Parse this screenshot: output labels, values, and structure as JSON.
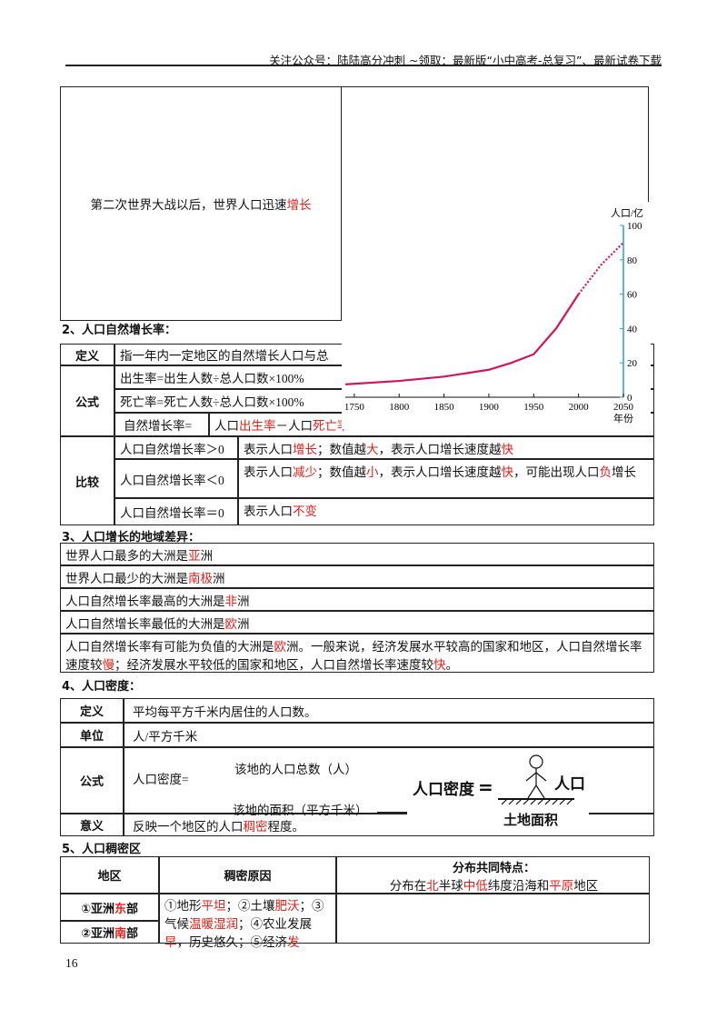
{
  "header": "关注公众号：陆陆高分冲刺  ~领取：最新版“小中高考-总复习”、最新试卷下载",
  "intro_row": [
    "第二次世界大战以后，世界人口迅速",
    "增长"
  ],
  "section2": {
    "title": "2、人口自然增长率：",
    "definition": {
      "label": "定义",
      "text": [
        "指一年内一定地区的自然增长人口与总"
      ]
    },
    "formula": {
      "label": "公式",
      "lines": [
        [
          "出生率=出生人数÷总人口数×100%"
        ],
        [
          "死亡率=死亡人数÷总人口数×100%"
        ]
      ],
      "growth_label": "自然增长率=",
      "growth_text": [
        "人口",
        "出生率",
        "－人口",
        "死亡率"
      ]
    },
    "compare": {
      "label": "比较",
      "rows": [
        {
          "condition": "人口自然增长率＞0",
          "meaning": [
            "表示人口",
            "增长",
            "；数值越",
            "大",
            "，表示人口增长速度越",
            "快"
          ]
        },
        {
          "condition": "人口自然增长率＜0",
          "meaning": [
            "表示人口",
            "减少",
            "；数值越",
            "小",
            "，表示人口增长速度越",
            "快",
            "，可能出现人口",
            "负",
            "增长"
          ]
        },
        {
          "condition": "人口自然增长率＝0",
          "meaning": [
            "表示人口",
            "不变"
          ]
        }
      ]
    }
  },
  "section3": {
    "title": "3、人口增长的地域差异：",
    "rows": [
      [
        "世界人口最多的大洲是",
        "亚",
        "洲"
      ],
      [
        "世界人口最少的大洲是",
        "南极",
        "洲"
      ],
      [
        "人口自然增长率最高的大洲是",
        "非",
        "洲"
      ],
      [
        "人口自然增长率最低的大洲是",
        "欧",
        "洲"
      ],
      [
        "人口自然增长率有可能为负值的大洲是",
        "欧",
        "洲。一般来说，经济发展水平较高的国家和地区，人口自然增长率速度较",
        "慢",
        "；经济发展水平较低的国家和地区，人口自然增长率速度较",
        "快",
        "。"
      ]
    ]
  },
  "section4": {
    "title": "4、人口密度：",
    "definition": {
      "label": "定义",
      "text": [
        "平均每平方千米内居住的人口数。"
      ]
    },
    "unit": {
      "label": "单位",
      "text": [
        "人/平方千米"
      ]
    },
    "formula": {
      "label": "公式",
      "lhs": "人口密度=",
      "numerator": "该地的人口总数（人）",
      "denominator": "该地的面积（平方千米）"
    },
    "figure": {
      "left": "人口密度",
      "equals": "=",
      "top": "人口",
      "bottom": "土地面积"
    },
    "meaning": {
      "label": "意义",
      "text": [
        "反映一个地区的人口",
        "稠密",
        "程度。"
      ]
    }
  },
  "section5": {
    "title": "5、人口稠密区",
    "headers": {
      "region": "地区",
      "reason": "稠密原因",
      "common_label": "分布共同特点：",
      "common": [
        "分布在",
        "北",
        "半球",
        "中低",
        "纬度沿海和",
        "平原",
        "地区"
      ]
    },
    "regions": [
      [
        "①亚洲",
        "东",
        "部"
      ],
      [
        "②亚洲",
        "南",
        "部"
      ]
    ],
    "reason": [
      "①地形",
      "平坦",
      "；②土壤",
      "肥沃",
      "；③气候",
      "温暖湿润",
      "；④农业发展",
      "早",
      "，历史悠久；⑤经济",
      "发"
    ]
  },
  "page_number": "16",
  "chart_data": {
    "type": "line",
    "y_label": "人口/亿",
    "x_label": "年份",
    "xlim": [
      1740,
      2050
    ],
    "ylim": [
      0,
      100
    ],
    "xticks": [
      1750,
      1800,
      1850,
      1900,
      1950,
      2000,
      2050
    ],
    "yticks": [
      0,
      20,
      40,
      60,
      80,
      100
    ],
    "series": [
      {
        "style": "solid",
        "color": "#d4145a",
        "x": [
          1740,
          1800,
          1850,
          1900,
          1925,
          1950,
          1975,
          2000
        ],
        "values": [
          7.5,
          9.5,
          12,
          16,
          20,
          25,
          40,
          60
        ]
      },
      {
        "style": "dotted",
        "color": "#d4145a",
        "x": [
          2000,
          2025,
          2050
        ],
        "values": [
          60,
          77,
          90
        ]
      }
    ]
  }
}
